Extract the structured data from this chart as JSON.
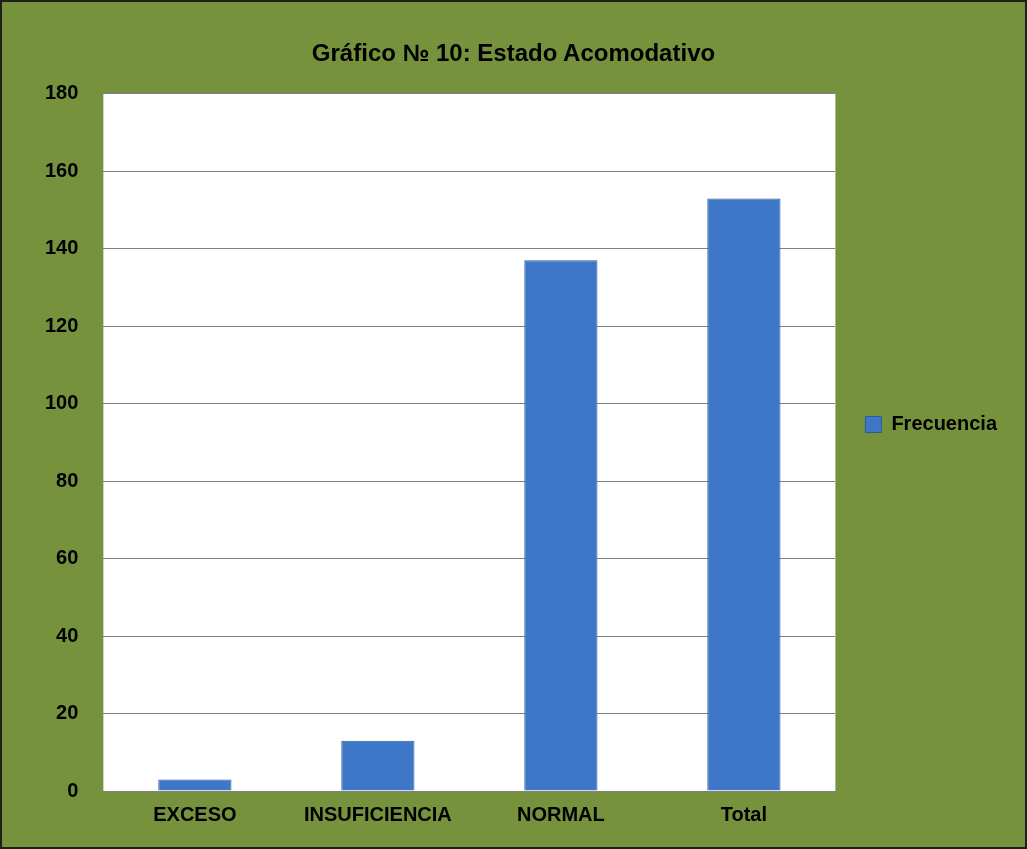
{
  "chart_data": {
    "type": "bar",
    "title": "Gráfico № 10: Estado Acomodativo",
    "categories": [
      "EXCESO",
      "INSUFICIENCIA",
      "NORMAL",
      "Total"
    ],
    "series": [
      {
        "name": "Frecuencia",
        "color": "#3f77c8",
        "values": [
          3,
          13,
          137,
          153
        ]
      }
    ],
    "ylim": [
      0,
      180
    ],
    "yticks": [
      0,
      20,
      40,
      60,
      80,
      100,
      120,
      140,
      160,
      180
    ],
    "grid": "y",
    "legend": "right"
  }
}
